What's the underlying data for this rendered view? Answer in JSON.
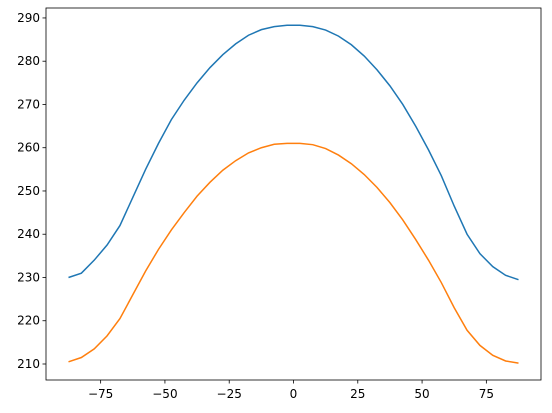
{
  "chart_data": {
    "type": "line",
    "x": [
      -87.5,
      -82.5,
      -77.5,
      -72.5,
      -67.5,
      -62.5,
      -57.5,
      -52.5,
      -47.5,
      -42.5,
      -37.5,
      -32.5,
      -27.5,
      -22.5,
      -17.5,
      -12.5,
      -7.5,
      -2.5,
      2.5,
      7.5,
      12.5,
      17.5,
      22.5,
      27.5,
      32.5,
      37.5,
      42.5,
      47.5,
      52.5,
      57.5,
      62.5,
      67.5,
      72.5,
      77.5,
      82.5,
      87.5
    ],
    "series": [
      {
        "color": "#1f77b4",
        "values": [
          230.0,
          231.0,
          234.0,
          237.5,
          242.0,
          248.5,
          255.0,
          261.0,
          266.5,
          271.0,
          275.0,
          278.5,
          281.5,
          284.0,
          286.0,
          287.3,
          288.0,
          288.3,
          288.3,
          288.0,
          287.2,
          285.8,
          283.8,
          281.2,
          278.0,
          274.3,
          270.0,
          265.0,
          259.5,
          253.5,
          246.5,
          240.0,
          235.5,
          232.5,
          230.5,
          229.5
        ]
      },
      {
        "color": "#ff7f0e",
        "values": [
          210.5,
          211.5,
          213.5,
          216.5,
          220.5,
          226.0,
          231.5,
          236.5,
          241.0,
          245.0,
          248.8,
          252.0,
          254.8,
          257.0,
          258.8,
          260.0,
          260.8,
          261.0,
          261.0,
          260.7,
          259.8,
          258.3,
          256.3,
          253.8,
          250.8,
          247.3,
          243.3,
          238.8,
          234.0,
          228.8,
          223.0,
          217.8,
          214.3,
          212.0,
          210.7,
          210.2
        ]
      }
    ],
    "xlim": [
      -96.25,
      96.25
    ],
    "xticks": [
      {
        "value": -75,
        "label": "−75"
      },
      {
        "value": -50,
        "label": "−50"
      },
      {
        "value": -25,
        "label": "−25"
      },
      0,
      25,
      50,
      75
    ],
    "ylim": [
      206.3,
      292.3
    ],
    "yticks": [
      210,
      220,
      230,
      240,
      250,
      260,
      270,
      280,
      290
    ],
    "grid": false
  }
}
